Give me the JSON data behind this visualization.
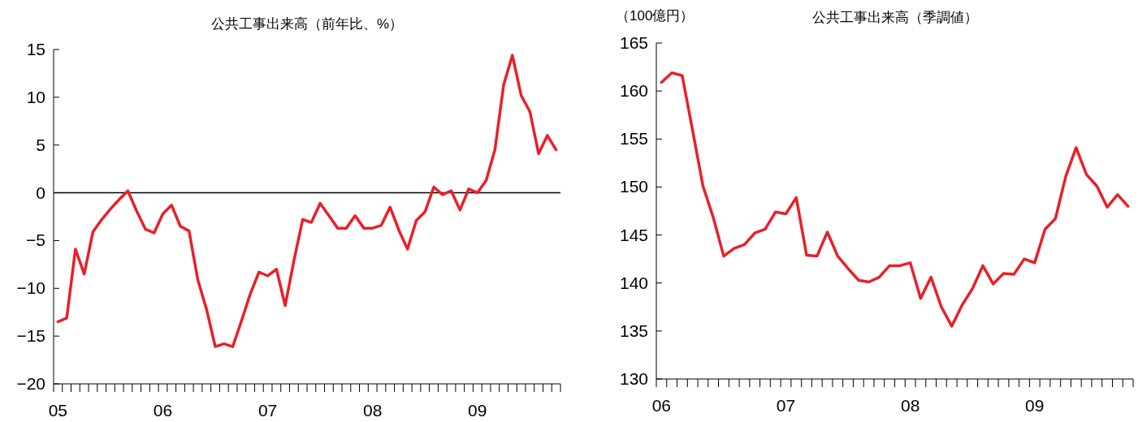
{
  "chart_data": [
    {
      "type": "line",
      "title": "公共工事出来高（前年比、%）",
      "categories": [
        "05",
        null,
        null,
        null,
        null,
        null,
        null,
        null,
        null,
        null,
        null,
        null,
        "06",
        null,
        null,
        null,
        null,
        null,
        null,
        null,
        null,
        null,
        null,
        null,
        "07",
        null,
        null,
        null,
        null,
        null,
        null,
        null,
        null,
        null,
        null,
        null,
        "08",
        null,
        null,
        null,
        null,
        null,
        null,
        null,
        null,
        null,
        null,
        null,
        "09",
        null,
        null,
        null,
        null,
        null,
        null,
        null,
        null,
        null
      ],
      "series": [
        {
          "color": "#e8202a",
          "values": [
            -13.5,
            -13.1,
            -5.9,
            -8.5,
            -4.1,
            -2.8,
            -1.7,
            -0.7,
            0.2,
            -1.9,
            -3.8,
            -4.2,
            -2.2,
            -1.3,
            -3.5,
            -4.0,
            -9.1,
            -12.2,
            -16.1,
            -15.8,
            -16.1,
            -13.4,
            -10.6,
            -8.3,
            -8.7,
            -8.0,
            -11.8,
            -7.1,
            -2.8,
            -3.1,
            -1.1,
            -2.4,
            -3.7,
            -3.7,
            -2.4,
            -3.7,
            -3.7,
            -3.4,
            -1.5,
            -3.9,
            -5.9,
            -2.9,
            -2.0,
            0.6,
            -0.2,
            0.2,
            -1.8,
            0.4,
            0.0,
            1.3,
            4.5,
            11.3,
            14.4,
            10.2,
            8.5,
            4.1,
            6.0,
            4.5
          ]
        }
      ],
      "ylim": [
        -20,
        15
      ],
      "yticks": [
        -20,
        -15,
        -10,
        -5,
        0,
        5,
        10,
        15
      ],
      "ref_lines": [
        {
          "axis": "y",
          "value": 0,
          "color": "#000000"
        }
      ]
    },
    {
      "type": "line",
      "title": "公共工事出来高（季調値）",
      "ylabel": "（100億円）",
      "categories": [
        "06",
        null,
        null,
        null,
        null,
        null,
        null,
        null,
        null,
        null,
        null,
        null,
        "07",
        null,
        null,
        null,
        null,
        null,
        null,
        null,
        null,
        null,
        null,
        null,
        "08",
        null,
        null,
        null,
        null,
        null,
        null,
        null,
        null,
        null,
        null,
        null,
        "09",
        null,
        null,
        null,
        null,
        null,
        null,
        null,
        null,
        null
      ],
      "series": [
        {
          "color": "#e8202a",
          "values": [
            160.9,
            161.9,
            161.6,
            155.9,
            150.1,
            146.8,
            142.8,
            143.6,
            144.0,
            145.2,
            145.6,
            147.4,
            147.2,
            148.9,
            142.9,
            142.8,
            145.3,
            142.8,
            141.5,
            140.3,
            140.1,
            140.6,
            141.8,
            141.8,
            142.1,
            138.4,
            140.6,
            137.5,
            135.5,
            137.7,
            139.4,
            141.8,
            139.9,
            141.0,
            140.9,
            142.5,
            142.1,
            145.6,
            146.7,
            151.1,
            154.1,
            151.3,
            150.1,
            147.9,
            149.2,
            148.0
          ]
        }
      ],
      "ylim": [
        130,
        165
      ],
      "yticks": [
        130,
        135,
        140,
        145,
        150,
        155,
        160,
        165
      ]
    }
  ]
}
